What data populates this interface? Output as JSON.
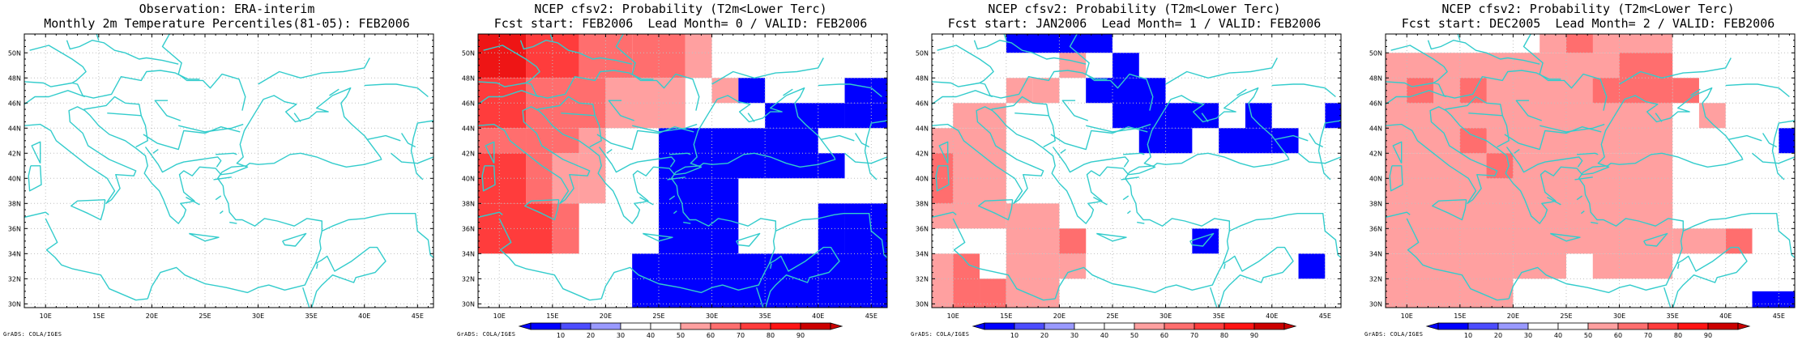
{
  "credit": "GrADS: COLA/IGES",
  "map": {
    "lon_labels": [
      "10E",
      "15E",
      "20E",
      "25E",
      "30E",
      "35E",
      "40E",
      "45E"
    ],
    "lat_labels": [
      "30N",
      "32N",
      "34N",
      "36N",
      "38N",
      "40N",
      "42N",
      "44N",
      "46N",
      "48N",
      "50N"
    ],
    "extent": {
      "lon": [
        8,
        46.5
      ],
      "lat": [
        29.7,
        51.5
      ]
    },
    "coast_color": "#33cccc"
  },
  "colorbar": {
    "labels": [
      "10",
      "20",
      "30",
      "40",
      "50",
      "60",
      "70",
      "80",
      "90"
    ],
    "colors": [
      "#0000ff",
      "#4d4dff",
      "#9999ff",
      "#ffffff",
      "#ffffff",
      "#ffa0a0",
      "#ff6e6e",
      "#ff3c3c",
      "#ff1414",
      "#cc0000"
    ]
  },
  "palette": {
    "1": "#ffa0a0",
    "2": "#ff6e6e",
    "3": "#ff3c3c",
    "4": "#ee1515",
    "5": "#cc0000",
    "-1": "#9999ff",
    "-2": "#0000ff"
  },
  "panels": [
    {
      "title": [
        "Observation: ERA-interim",
        "Monthly 2m Temperature Percentiles(81-05): FEB2006"
      ],
      "colorbar": false,
      "cells": []
    },
    {
      "title": [
        "NCEP cfsv2: Probability (T2m<Lower Terc)",
        "Fcst start: FEB2006  Lead Month= 0 / VALID: FEB2006"
      ],
      "colorbar": true,
      "cells": [
        [
          8,
          48,
          12.5,
          52,
          4
        ],
        [
          12.5,
          48,
          17.5,
          52,
          3
        ],
        [
          17.5,
          48,
          22.5,
          52,
          2
        ],
        [
          22.5,
          48,
          27.5,
          52,
          2
        ],
        [
          27.5,
          48,
          30,
          52,
          1
        ],
        [
          8,
          44,
          12.5,
          48,
          3
        ],
        [
          12.5,
          44,
          20,
          48,
          2
        ],
        [
          20,
          44,
          27.5,
          48,
          1
        ],
        [
          30,
          46,
          32.5,
          48,
          1
        ],
        [
          8,
          42,
          12.5,
          44,
          2
        ],
        [
          12.5,
          42,
          17.5,
          44,
          2
        ],
        [
          17.5,
          42,
          20,
          44,
          1
        ],
        [
          8,
          38,
          12.5,
          42,
          3
        ],
        [
          12.5,
          38,
          15,
          42,
          2
        ],
        [
          15,
          38,
          17.5,
          42,
          1
        ],
        [
          17.5,
          38,
          20,
          42,
          1
        ],
        [
          8,
          34,
          15,
          38,
          3
        ],
        [
          15,
          34,
          17.5,
          38,
          2
        ],
        [
          32.5,
          46,
          35,
          48,
          -2
        ],
        [
          35,
          44,
          42.5,
          46,
          -2
        ],
        [
          42.5,
          46,
          46.5,
          48,
          -2
        ],
        [
          42.5,
          44,
          46.5,
          46,
          -2
        ],
        [
          25,
          40,
          40,
          44,
          -2
        ],
        [
          40,
          40,
          42.5,
          42,
          -2
        ],
        [
          25,
          34,
          32.5,
          40,
          -2
        ],
        [
          40,
          34,
          42.5,
          38,
          -2
        ],
        [
          42.5,
          32,
          46.5,
          38,
          -2
        ],
        [
          22.5,
          29.7,
          46.5,
          34,
          -2
        ]
      ]
    },
    {
      "title": [
        "NCEP cfsv2: Probability (T2m<Lower Terc)",
        "Fcst start: JAN2006  Lead Month= 1 / VALID: FEB2006"
      ],
      "colorbar": true,
      "cells": [
        [
          15,
          46,
          17.5,
          48,
          1
        ],
        [
          17.5,
          46,
          20,
          48,
          1
        ],
        [
          20,
          48,
          22.5,
          52,
          1
        ],
        [
          10,
          44,
          15,
          46,
          1
        ],
        [
          8,
          36,
          15,
          44,
          1
        ],
        [
          8,
          38,
          10,
          42,
          2
        ],
        [
          15,
          34,
          20,
          38,
          1
        ],
        [
          20,
          32,
          22.5,
          36,
          1
        ],
        [
          20,
          34,
          22.5,
          36,
          2
        ],
        [
          8,
          29.7,
          10,
          34,
          1
        ],
        [
          10,
          29.7,
          12.5,
          34,
          2
        ],
        [
          12.5,
          29.7,
          15,
          32,
          2
        ],
        [
          15,
          29.7,
          20,
          34,
          1
        ],
        [
          15,
          50,
          25,
          52,
          -2
        ],
        [
          25,
          48,
          27.5,
          50,
          -2
        ],
        [
          22.5,
          46,
          25,
          48,
          -2
        ],
        [
          25,
          44,
          30,
          48,
          -2
        ],
        [
          27.5,
          42,
          32.5,
          44,
          -2
        ],
        [
          30,
          44,
          35,
          46,
          -2
        ],
        [
          35,
          42,
          40,
          44,
          -2
        ],
        [
          37.5,
          44,
          40,
          46,
          -2
        ],
        [
          40,
          42,
          42.5,
          44,
          -2
        ],
        [
          45,
          44,
          46.5,
          46,
          -2
        ],
        [
          32.5,
          34,
          35,
          36,
          -2
        ],
        [
          42.5,
          32,
          45,
          34,
          -2
        ]
      ]
    },
    {
      "title": [
        "NCEP cfsv2: Probability (T2m<Lower Terc)",
        "Fcst start: DEC2005  Lead Month= 2 / VALID: FEB2006"
      ],
      "colorbar": true,
      "cells": [
        [
          8,
          42,
          35,
          50,
          1
        ],
        [
          22.5,
          50,
          35,
          52,
          1
        ],
        [
          8,
          34,
          35,
          42,
          1
        ],
        [
          8,
          29.7,
          20,
          34,
          1
        ],
        [
          20,
          32,
          25,
          34,
          1
        ],
        [
          27.5,
          32,
          35,
          34,
          1
        ],
        [
          35,
          34,
          40,
          36,
          1
        ],
        [
          22.5,
          34,
          25,
          38,
          1
        ],
        [
          37.5,
          44,
          40,
          46,
          1
        ],
        [
          27.5,
          36,
          35,
          40,
          1
        ],
        [
          10,
          46,
          12.5,
          48,
          2
        ],
        [
          15,
          46,
          17.5,
          48,
          2
        ],
        [
          25,
          50,
          27.5,
          52,
          2
        ],
        [
          27.5,
          46,
          30,
          48,
          2
        ],
        [
          30,
          46,
          35,
          50,
          2
        ],
        [
          35,
          46,
          37.5,
          48,
          2
        ],
        [
          15,
          42,
          17.5,
          44,
          2
        ],
        [
          17.5,
          40,
          20,
          42,
          2
        ],
        [
          40,
          34,
          42.5,
          36,
          2
        ],
        [
          45,
          42,
          47.5,
          44,
          -2
        ],
        [
          42.5,
          29.7,
          46.5,
          31,
          -2
        ]
      ]
    }
  ]
}
